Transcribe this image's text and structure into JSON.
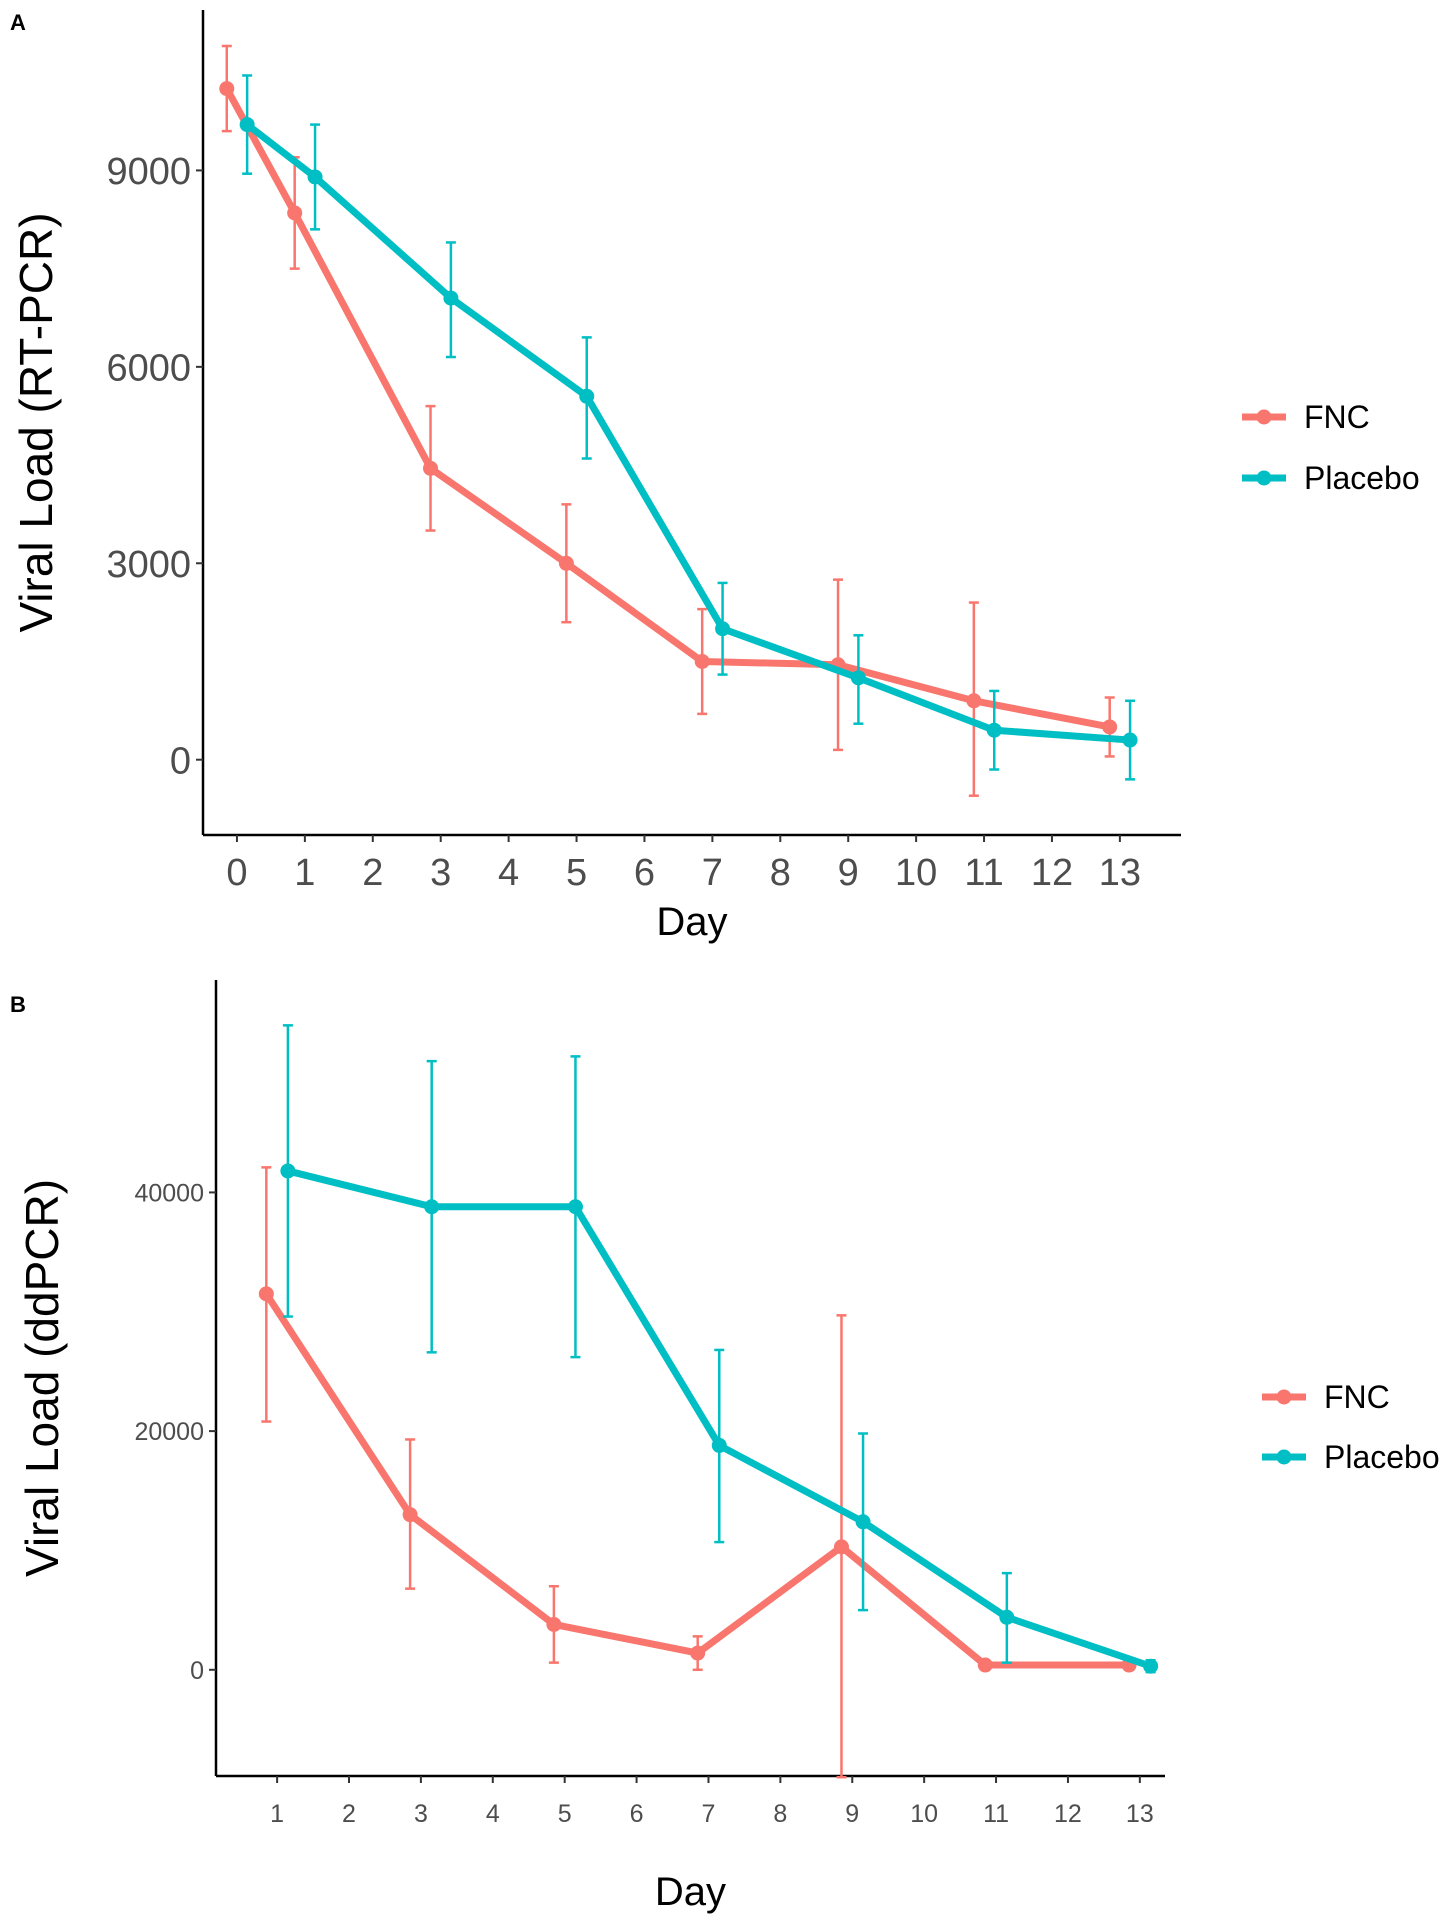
{
  "colors": {
    "FNC": "#F8766D",
    "Placebo": "#00BFC4"
  },
  "chart_data": [
    {
      "panel_label": "A",
      "type": "line",
      "title": "",
      "xlabel": "Day",
      "ylabel": "Viral Load (RT-PCR)",
      "xlim": [
        -0.5,
        13.9
      ],
      "ylim": [
        -1150,
        11450
      ],
      "xticks": [
        0,
        1,
        2,
        3,
        4,
        5,
        6,
        7,
        8,
        9,
        10,
        11,
        12,
        13
      ],
      "yticks": [
        0,
        3000,
        6000,
        9000
      ],
      "grid": false,
      "legend": {
        "placement": "right",
        "entries": [
          "FNC",
          "Placebo"
        ]
      },
      "series": [
        {
          "name": "FNC",
          "x": [
            0,
            1,
            3,
            5,
            7,
            9,
            11,
            13
          ],
          "y": [
            10250,
            8350,
            4450,
            3000,
            1500,
            1450,
            900,
            500
          ],
          "err_low": [
            9600,
            7500,
            3500,
            2100,
            700,
            150,
            -550,
            50
          ],
          "err_high": [
            10900,
            9200,
            5400,
            3900,
            2300,
            2750,
            2400,
            950
          ]
        },
        {
          "name": "Placebo",
          "x": [
            0,
            1,
            3,
            5,
            7,
            9,
            11,
            13
          ],
          "y": [
            9700,
            8900,
            7050,
            5550,
            2000,
            1250,
            450,
            300
          ],
          "err_low": [
            8950,
            8100,
            6150,
            4600,
            1300,
            550,
            -150,
            -300
          ],
          "err_high": [
            10450,
            9700,
            7900,
            6450,
            2700,
            1900,
            1050,
            900
          ]
        }
      ]
    },
    {
      "panel_label": "B",
      "type": "line",
      "title": "",
      "xlabel": "Day",
      "ylabel": "Viral Load (ddPCR)",
      "xlim": [
        0.15,
        13.35
      ],
      "ylim": [
        -8900,
        57800
      ],
      "xticks": [
        1,
        2,
        3,
        4,
        5,
        6,
        7,
        8,
        9,
        10,
        11,
        12,
        13
      ],
      "yticks": [
        0,
        20000,
        40000
      ],
      "grid": false,
      "legend": {
        "placement": "right",
        "entries": [
          "FNC",
          "Placebo"
        ]
      },
      "series": [
        {
          "name": "FNC",
          "x": [
            1,
            3,
            5,
            7,
            9,
            11,
            13
          ],
          "y": [
            31500,
            13000,
            3800,
            1400,
            10300,
            400,
            400
          ],
          "err_low": [
            20800,
            6800,
            600,
            0,
            -9000,
            200,
            0
          ],
          "err_high": [
            42100,
            19300,
            7000,
            2800,
            29700,
            600,
            800
          ]
        },
        {
          "name": "Placebo",
          "x": [
            1,
            3,
            5,
            7,
            9,
            11,
            13
          ],
          "y": [
            41800,
            38800,
            38800,
            18800,
            12400,
            4400,
            300
          ],
          "err_low": [
            29600,
            26600,
            26200,
            10700,
            5000,
            600,
            -200
          ],
          "err_high": [
            54000,
            51000,
            51400,
            26800,
            19800,
            8100,
            800
          ]
        }
      ]
    }
  ]
}
